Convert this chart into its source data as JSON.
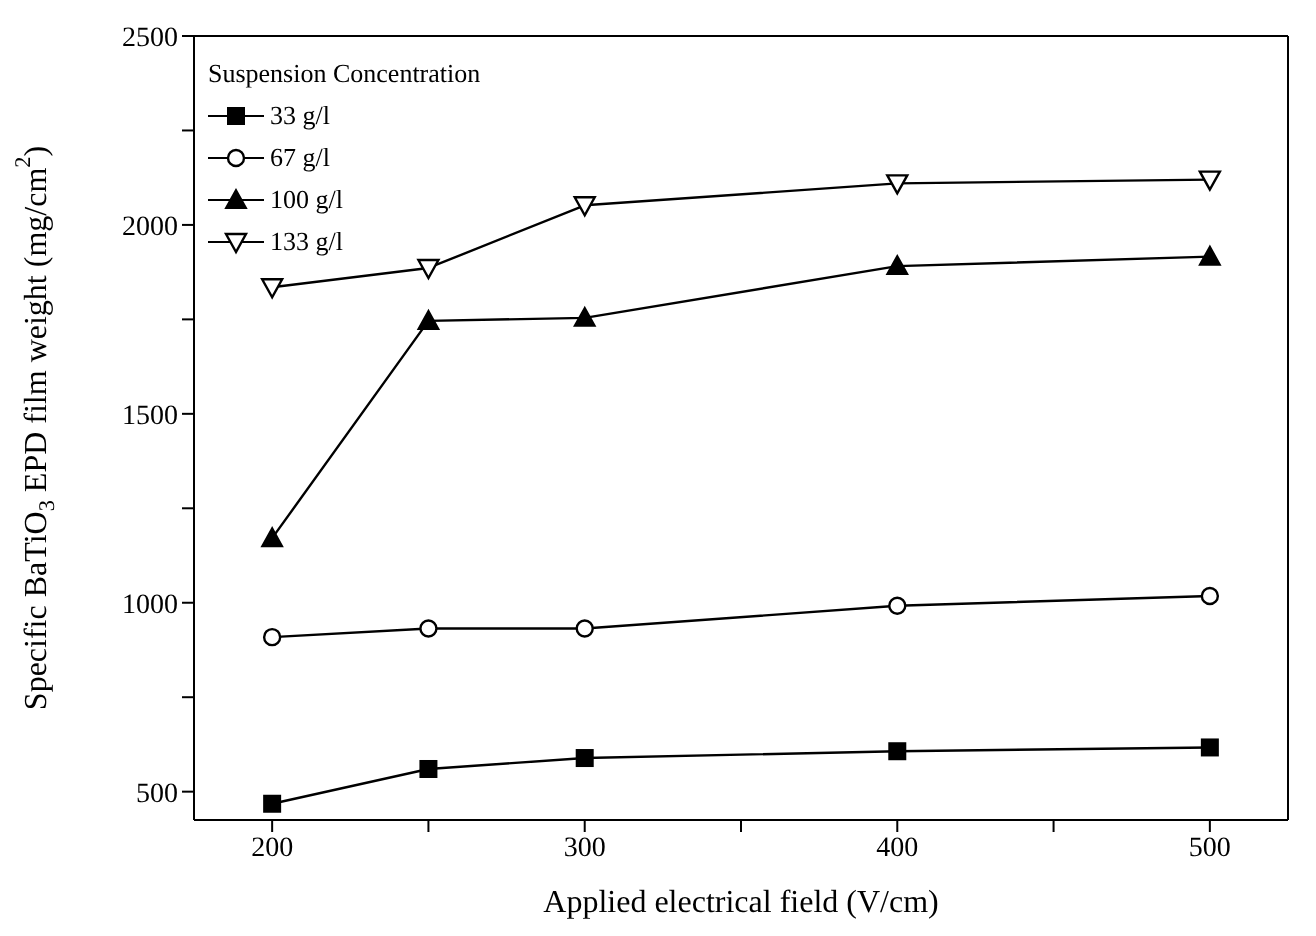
{
  "chart_data": {
    "type": "line",
    "xlabel": "Applied electrical field (V/cm)",
    "ylabel": "Specific BaTiO$_{3}$ EPD film weight (mg/cm$^{2}$)",
    "legend_title": "Suspension Concentration",
    "legend": "top left",
    "x": [
      200,
      250,
      300,
      400,
      500
    ],
    "xlim": [
      175,
      525
    ],
    "xticks": [
      200,
      {
        "value": 250,
        "label": null
      },
      300,
      {
        "value": 350,
        "label": null
      },
      400,
      {
        "value": 450,
        "label": null
      },
      500
    ],
    "ylim": [
      425,
      2500
    ],
    "yticks": [
      500,
      {
        "value": 750,
        "label": null
      },
      1000,
      {
        "value": 1250,
        "label": null
      },
      1500,
      {
        "value": 1750,
        "label": null
      },
      2000,
      {
        "value": 2250,
        "label": null
      },
      2500
    ],
    "grid": false,
    "line_style": "solid",
    "series": [
      {
        "name": "33 g/l",
        "color": "#000000",
        "marker": "square",
        "values": [
          468,
          560,
          589,
          607,
          617
        ]
      },
      {
        "name": "67 g/l",
        "color": "#000000",
        "marker": "circle-open",
        "values": [
          909,
          932,
          932,
          992,
          1018
        ]
      },
      {
        "name": "100 g/l",
        "color": "#000000",
        "marker": "triangle",
        "values": [
          1171,
          1746,
          1754,
          1891,
          1916
        ]
      },
      {
        "name": "133 g/l",
        "color": "#000000",
        "marker": "triangle-down-open",
        "values": [
          1835,
          1886,
          2052,
          2110,
          2120
        ]
      }
    ]
  }
}
